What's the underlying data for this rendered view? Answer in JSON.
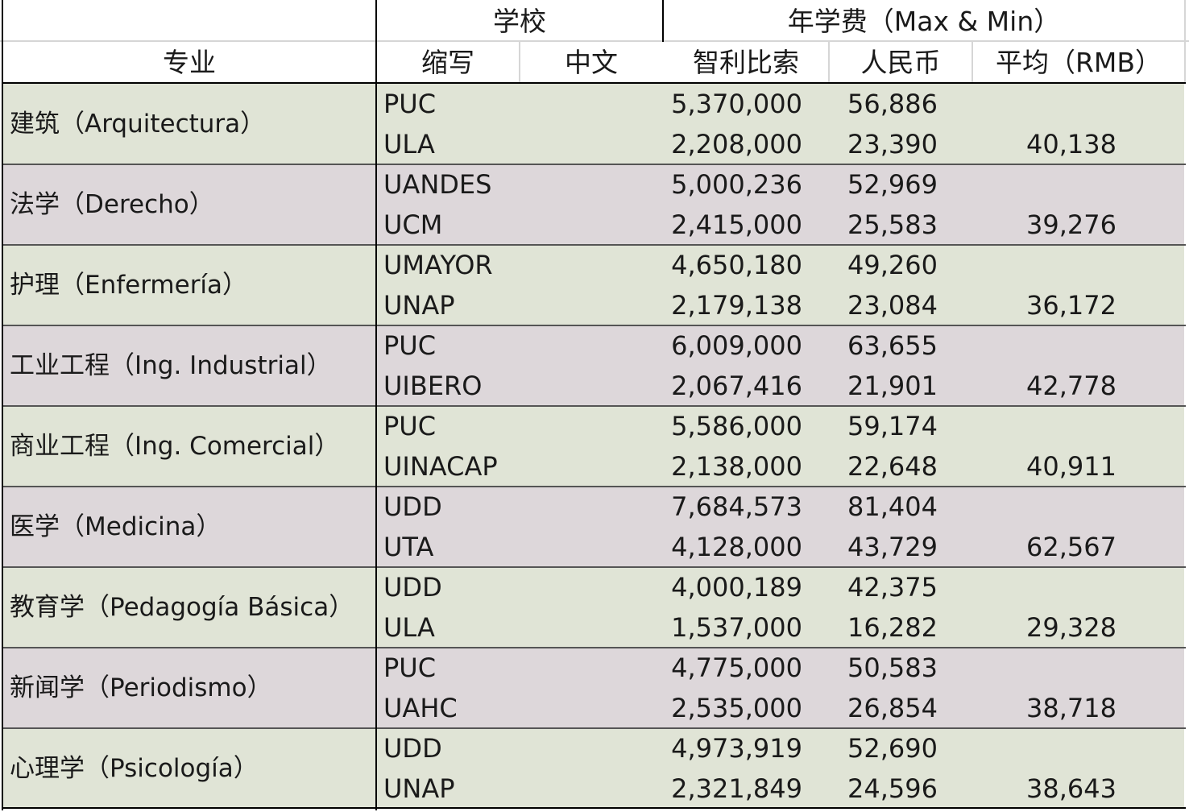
{
  "colors": {
    "band_green": "#e0e4d6",
    "band_mauve": "#ddd7da",
    "gridline": "#d6d6d6",
    "rule": "#000000"
  },
  "header": {
    "school_group": "学校",
    "fee_group": "年学费（Max & Min）",
    "major": "专业",
    "abbr": "缩写",
    "chinese": "中文",
    "clp": "智利比索",
    "rmb": "人民币",
    "avg": "平均（RMB）"
  },
  "rows": [
    {
      "major": "建筑（Arquitectura）",
      "band": "green",
      "entries": [
        {
          "school": "PUC",
          "clp": "5,370,000",
          "rmb": "56,886"
        },
        {
          "school": "ULA",
          "clp": "2,208,000",
          "rmb": "23,390"
        }
      ],
      "avg": "40,138"
    },
    {
      "major": "法学（Derecho）",
      "band": "mauve",
      "entries": [
        {
          "school": "UANDES",
          "clp": "5,000,236",
          "rmb": "52,969"
        },
        {
          "school": "UCM",
          "clp": "2,415,000",
          "rmb": "25,583"
        }
      ],
      "avg": "39,276"
    },
    {
      "major": "护理（Enfermería）",
      "band": "green",
      "entries": [
        {
          "school": "UMAYOR",
          "clp": "4,650,180",
          "rmb": "49,260"
        },
        {
          "school": "UNAP",
          "clp": "2,179,138",
          "rmb": "23,084"
        }
      ],
      "avg": "36,172"
    },
    {
      "major": "工业工程（Ing. Industrial）",
      "band": "mauve",
      "entries": [
        {
          "school": "PUC",
          "clp": "6,009,000",
          "rmb": "63,655"
        },
        {
          "school": "UIBERO",
          "clp": "2,067,416",
          "rmb": "21,901"
        }
      ],
      "avg": "42,778"
    },
    {
      "major": "商业工程（Ing. Comercial）",
      "band": "green",
      "entries": [
        {
          "school": "PUC",
          "clp": "5,586,000",
          "rmb": "59,174"
        },
        {
          "school": "UINACAP",
          "clp": "2,138,000",
          "rmb": "22,648"
        }
      ],
      "avg": "40,911"
    },
    {
      "major": "医学（Medicina）",
      "band": "mauve",
      "entries": [
        {
          "school": "UDD",
          "clp": "7,684,573",
          "rmb": "81,404"
        },
        {
          "school": "UTA",
          "clp": "4,128,000",
          "rmb": "43,729"
        }
      ],
      "avg": "62,567"
    },
    {
      "major": "教育学（Pedagogía Básica）",
      "band": "green",
      "entries": [
        {
          "school": "UDD",
          "clp": "4,000,189",
          "rmb": "42,375"
        },
        {
          "school": "ULA",
          "clp": "1,537,000",
          "rmb": "16,282"
        }
      ],
      "avg": "29,328"
    },
    {
      "major": "新闻学（Periodismo）",
      "band": "mauve",
      "entries": [
        {
          "school": "PUC",
          "clp": "4,775,000",
          "rmb": "50,583"
        },
        {
          "school": "UAHC",
          "clp": "2,535,000",
          "rmb": "26,854"
        }
      ],
      "avg": "38,718"
    },
    {
      "major": "心理学（Psicología）",
      "band": "green",
      "entries": [
        {
          "school": "UDD",
          "clp": "4,973,919",
          "rmb": "52,690"
        },
        {
          "school": "UNAP",
          "clp": "2,321,849",
          "rmb": "24,596"
        }
      ],
      "avg": "38,643"
    }
  ]
}
